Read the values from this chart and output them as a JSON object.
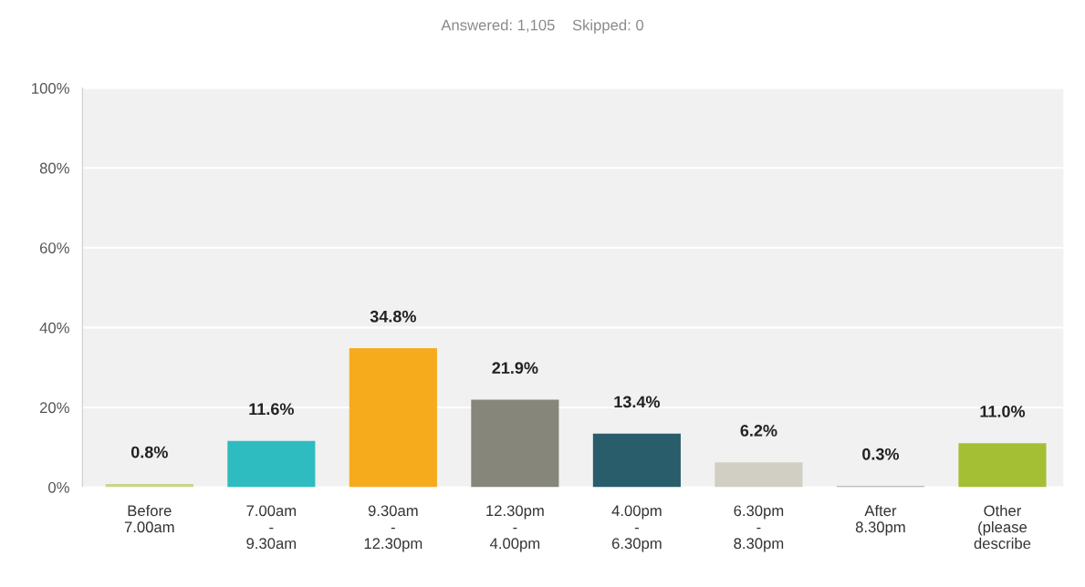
{
  "chart_data": {
    "type": "bar",
    "title": "Answered: 1,105    Skipped: 0",
    "categories": [
      "Before\n7.00am",
      "7.00am\n-\n9.30am",
      "9.30am\n-\n12.30pm",
      "12.30pm\n-\n4.00pm",
      "4.00pm\n-\n6.30pm",
      "6.30pm\n-\n8.30pm",
      "After\n8.30pm",
      "Other\n(please\ndescribe"
    ],
    "values": [
      0.8,
      11.6,
      34.8,
      21.9,
      13.4,
      6.2,
      0.3,
      11.0
    ],
    "colors": [
      "#c8d68e",
      "#2fbcc0",
      "#f5ab1c",
      "#86877a",
      "#2a5d6b",
      "#d1cec4",
      "#a9a9a9",
      "#a4bf34"
    ],
    "value_labels": [
      "0.8%",
      "11.6%",
      "34.8%",
      "21.9%",
      "13.4%",
      "6.2%",
      "0.3%",
      "11.0%"
    ],
    "ylim": [
      0,
      100
    ],
    "yticks": [
      {
        "value": 0,
        "label": "0%"
      },
      {
        "value": 20,
        "label": "20%"
      },
      {
        "value": 40,
        "label": "40%"
      },
      {
        "value": 60,
        "label": "60%"
      },
      {
        "value": 80,
        "label": "80%"
      },
      {
        "value": 100,
        "label": "100%"
      }
    ],
    "grid": "y"
  }
}
